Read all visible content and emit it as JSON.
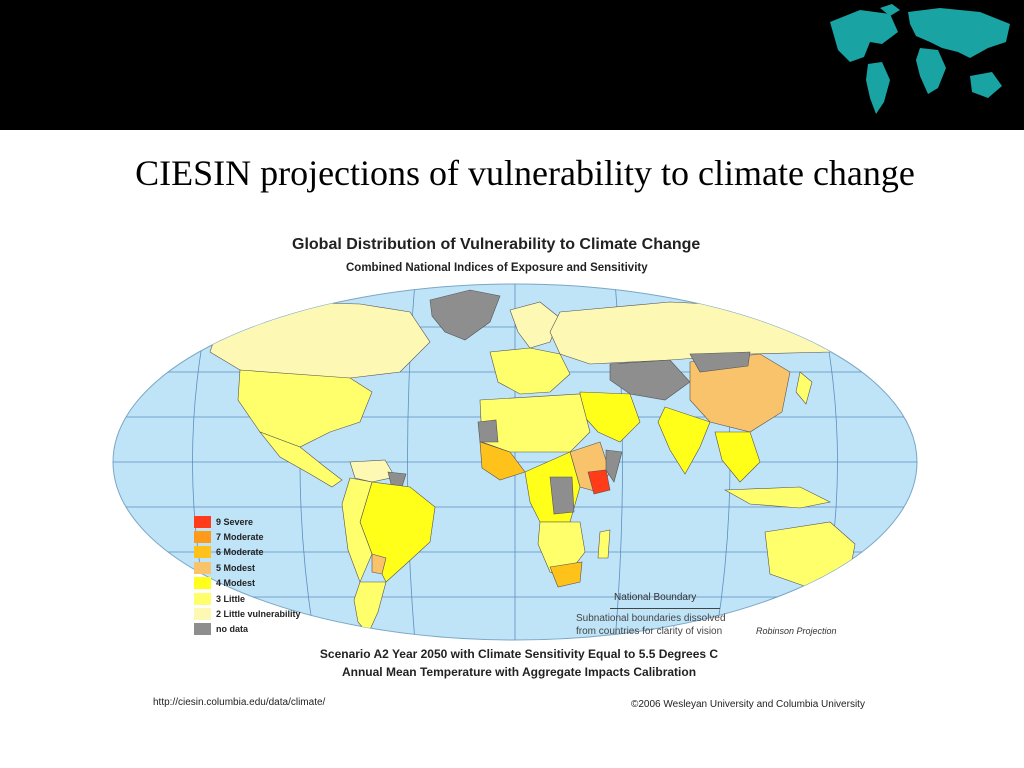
{
  "slide": {
    "title": "CIESIN projections of vulnerability to climate change"
  },
  "map": {
    "title": "Global Distribution of Vulnerability to Climate Change",
    "subtitle": "Combined National Indices of Exposure and Sensitivity",
    "ocean_color": "#bfe3f7",
    "legend": [
      {
        "label": "9  Severe",
        "color": "#ff3b1a"
      },
      {
        "label": "7  Moderate",
        "color": "#ff9a1a"
      },
      {
        "label": "6  Moderate",
        "color": "#ffc21a"
      },
      {
        "label": "5  Modest",
        "color": "#f9c36b"
      },
      {
        "label": "4  Modest",
        "color": "#ffff1a"
      },
      {
        "label": "3  Little",
        "color": "#ffff6b"
      },
      {
        "label": "2  Little vulnerability",
        "color": "#fdf8b3"
      },
      {
        "label": "no data",
        "color": "#8e8e8e"
      }
    ],
    "boundary_title": "National Boundary",
    "boundary_note_1": "Subnational boundaries dissolved",
    "boundary_note_2": "from countries for clarity of vision",
    "projection": "Robinson Projection",
    "scenario_line_1": "Scenario A2 Year 2050 with Climate Sensitivity Equal to 5.5 Degrees C",
    "scenario_line_2": "Annual Mean Temperature with Aggregate Impacts Calibration"
  },
  "footer": {
    "url": "http://ciesin.columbia.edu/data/climate/",
    "copyright": "©2006 Wesleyan University and Columbia University"
  }
}
